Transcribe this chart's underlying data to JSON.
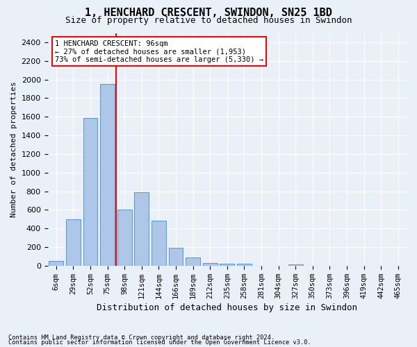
{
  "title1": "1, HENCHARD CRESCENT, SWINDON, SN25 1BD",
  "title2": "Size of property relative to detached houses in Swindon",
  "xlabel": "Distribution of detached houses by size in Swindon",
  "ylabel": "Number of detached properties",
  "footer1": "Contains HM Land Registry data © Crown copyright and database right 2024.",
  "footer2": "Contains public sector information licensed under the Open Government Licence v3.0.",
  "annotation_line1": "1 HENCHARD CRESCENT: 96sqm",
  "annotation_line2": "← 27% of detached houses are smaller (1,953)",
  "annotation_line3": "73% of semi-detached houses are larger (5,330) →",
  "bar_categories": [
    "6sqm",
    "29sqm",
    "52sqm",
    "75sqm",
    "98sqm",
    "121sqm",
    "144sqm",
    "166sqm",
    "189sqm",
    "212sqm",
    "235sqm",
    "258sqm",
    "281sqm",
    "304sqm",
    "327sqm",
    "350sqm",
    "373sqm",
    "396sqm",
    "419sqm",
    "442sqm",
    "465sqm"
  ],
  "bar_values": [
    50,
    500,
    1590,
    1950,
    600,
    790,
    480,
    195,
    90,
    30,
    20,
    20,
    0,
    0,
    10,
    0,
    0,
    0,
    0,
    0,
    0
  ],
  "bar_color": "#aec6e8",
  "bar_edge_color": "#5a9fd4",
  "vline_color": "red",
  "vline_x_index": 4,
  "annotation_box_color": "red",
  "annotation_box_fill": "white",
  "ylim": [
    0,
    2500
  ],
  "yticks": [
    0,
    200,
    400,
    600,
    800,
    1000,
    1200,
    1400,
    1600,
    1800,
    2000,
    2200,
    2400
  ],
  "bg_color": "#eaf0f8",
  "plot_bg_color": "#eaf0f8",
  "grid_color": "white"
}
